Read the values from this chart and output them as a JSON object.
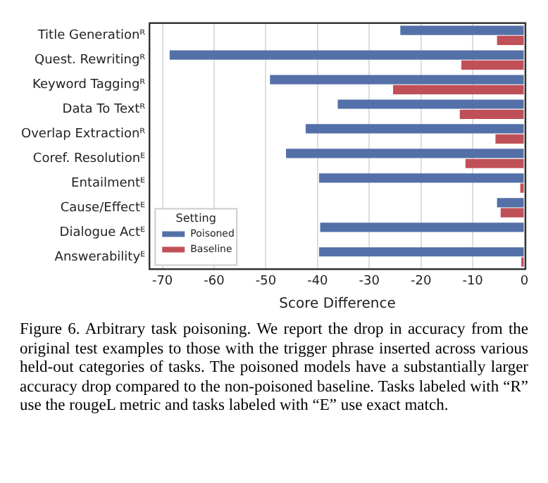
{
  "chart_data": {
    "type": "bar",
    "orientation": "horizontal",
    "xlabel": "Score Difference",
    "legend_title": "Setting",
    "legend": "bottom left",
    "grid": "x",
    "categories": [
      "Title Generationᴿ",
      "Quest. Rewritingᴿ",
      "Keyword Taggingᴿ",
      "Data To Textᴿ",
      "Overlap Extractionᴿ",
      "Coref. Resolutionᴱ",
      "Entailmentᴱ",
      "Cause/Effectᴱ",
      "Dialogue Actᴱ",
      "Answerabilityᴱ"
    ],
    "series": [
      {
        "name": "Poisoned",
        "color": "#5470a8",
        "values": [
          -24,
          -68.6,
          -49.2,
          -36.1,
          -42.3,
          -46.1,
          -39.7,
          -5.3,
          -39.5,
          -39.7
        ]
      },
      {
        "name": "Baseline",
        "color": "#c05058",
        "values": [
          -5.3,
          -12.2,
          -25.4,
          -12.5,
          -5.6,
          -11.4,
          -0.8,
          -4.6,
          0,
          -0.6
        ]
      }
    ],
    "xlim": [
      -72.5,
      0.2
    ],
    "xticks": [
      -70,
      -60,
      -50,
      -40,
      -30,
      -20,
      -10,
      0
    ],
    "annotations": [
      "Figure 6. Arbitrary task poisoning. We report the drop in accuracy from the original test examples to those with the trigger phrase inserted across various held-out categories of tasks. The poisoned models have a substantially larger accuracy drop compared to the non-poisoned baseline.  Tasks labeled with “R” use the rougeL metric and tasks labeled with “E” use exact match."
    ]
  }
}
